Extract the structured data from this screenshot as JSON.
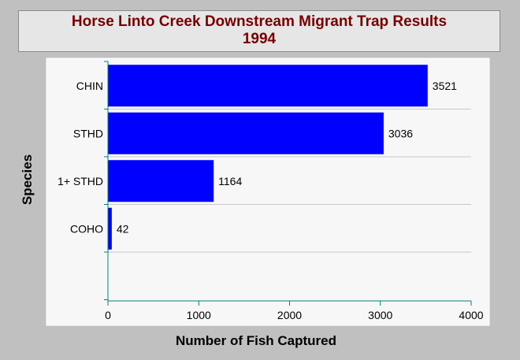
{
  "chart_data": {
    "type": "bar",
    "orientation": "horizontal",
    "title": "Horse Linto Creek Downstream Migrant Trap Results",
    "subtitle": "1994",
    "categories": [
      "CHIN",
      "STHD",
      "1+ STHD",
      "COHO"
    ],
    "values": [
      3521,
      3036,
      1164,
      42
    ],
    "data_labels": [
      "3521",
      "3036",
      "1164",
      "42"
    ],
    "xlabel": "Number of Fish Captured",
    "ylabel": "Species",
    "xlim": [
      0,
      4000
    ],
    "xticks": [
      "0",
      "1000",
      "2000",
      "3000",
      "4000"
    ],
    "grid": "horizontal",
    "colors": {
      "bar": "#0000ff",
      "axis": "#008080",
      "title": "#7a0000",
      "plot_bg": "#f7f7f7",
      "frame_bg": "#c0c0c0"
    }
  }
}
